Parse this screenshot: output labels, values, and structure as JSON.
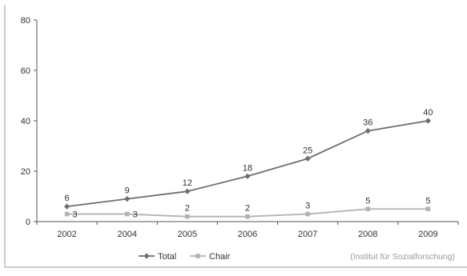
{
  "chart_data": {
    "type": "line",
    "categories": [
      "2002",
      "2004",
      "2005",
      "2006",
      "2007",
      "2008",
      "2009"
    ],
    "series": [
      {
        "name": "Total",
        "values": [
          6,
          9,
          12,
          18,
          25,
          36,
          40
        ],
        "labels": [
          "6",
          "9",
          "12",
          "18",
          "25",
          "36",
          "40"
        ],
        "color": "#6e6e6e",
        "marker": "diamond"
      },
      {
        "name": "Chair",
        "values": [
          3,
          3,
          2,
          2,
          3,
          5,
          5
        ],
        "labels": [
          "3",
          "3",
          "2",
          "2",
          "3",
          "5",
          "5"
        ],
        "color": "#b3b3b3",
        "marker": "square"
      }
    ],
    "ylim": [
      0,
      80
    ],
    "yticks": [
      "0",
      "20",
      "40",
      "60",
      "80"
    ],
    "grid": false,
    "legend_position": "bottom-center",
    "source_note": "(Institut für Sozialforschung)",
    "text_color": "#333333",
    "axis_color": "#555555",
    "border_color": "#9a9a9a"
  }
}
